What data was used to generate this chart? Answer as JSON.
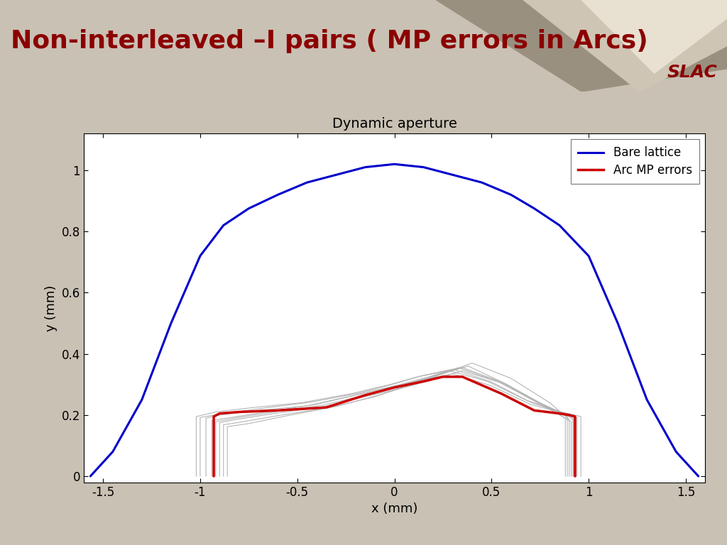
{
  "chart_title": "Dynamic aperture",
  "xlabel": "x (mm)",
  "ylabel": "y (mm)",
  "xlim": [
    -1.6,
    1.6
  ],
  "ylim": [
    -0.02,
    1.12
  ],
  "xticks": [
    -1.5,
    -1.0,
    -0.5,
    0.0,
    0.5,
    1.0,
    1.5
  ],
  "yticks": [
    0,
    0.2,
    0.4,
    0.6,
    0.8,
    1.0
  ],
  "background_color": "#c9c1b4",
  "plot_bg_color": "#ffffff",
  "slide_title": "Non-interleaved –I pairs ( MP errors in Arcs)",
  "title_color": "#8b0000",
  "title_fontsize": 26,
  "slac_text": "SLAC",
  "blue_curve": {
    "x": [
      -1.565,
      -1.45,
      -1.3,
      -1.15,
      -1.0,
      -0.88,
      -0.75,
      -0.6,
      -0.45,
      -0.3,
      -0.15,
      0.0,
      0.15,
      0.3,
      0.45,
      0.6,
      0.72,
      0.85,
      1.0,
      1.15,
      1.3,
      1.45,
      1.565
    ],
    "y": [
      0.0,
      0.08,
      0.25,
      0.5,
      0.72,
      0.82,
      0.875,
      0.92,
      0.96,
      0.985,
      1.01,
      1.02,
      1.01,
      0.985,
      0.96,
      0.92,
      0.875,
      0.82,
      0.72,
      0.5,
      0.25,
      0.08,
      0.0
    ],
    "color": "#0000cc",
    "linewidth": 2.2,
    "label": "Bare lattice"
  },
  "red_curve": {
    "x": [
      -0.93,
      -0.93,
      -0.9,
      -0.8,
      -0.6,
      -0.35,
      -0.15,
      0.0,
      0.15,
      0.25,
      0.35,
      0.55,
      0.72,
      0.85,
      0.9,
      0.93,
      0.93
    ],
    "y": [
      0.0,
      0.195,
      0.205,
      0.21,
      0.215,
      0.225,
      0.265,
      0.29,
      0.31,
      0.325,
      0.325,
      0.27,
      0.215,
      0.205,
      0.2,
      0.195,
      0.0
    ],
    "color": "#cc0000",
    "linewidth": 2.5,
    "label": "Arc MP errors"
  },
  "gray_curves": [
    {
      "x": [
        -0.97,
        -0.97,
        -0.9,
        -0.7,
        -0.45,
        -0.2,
        0.0,
        0.15,
        0.3,
        0.5,
        0.7,
        0.88,
        0.92,
        0.92
      ],
      "y": [
        0.0,
        0.19,
        0.2,
        0.215,
        0.23,
        0.265,
        0.295,
        0.315,
        0.335,
        0.295,
        0.235,
        0.205,
        0.19,
        0.0
      ]
    },
    {
      "x": [
        -0.9,
        -0.9,
        -0.82,
        -0.62,
        -0.38,
        -0.15,
        0.05,
        0.2,
        0.35,
        0.55,
        0.75,
        0.88,
        0.88
      ],
      "y": [
        0.0,
        0.175,
        0.185,
        0.205,
        0.225,
        0.26,
        0.29,
        0.315,
        0.345,
        0.305,
        0.235,
        0.19,
        0.0
      ]
    },
    {
      "x": [
        -0.88,
        -0.88,
        -0.78,
        -0.58,
        -0.33,
        -0.1,
        0.08,
        0.22,
        0.38,
        0.58,
        0.78,
        0.91,
        0.91
      ],
      "y": [
        0.0,
        0.168,
        0.178,
        0.2,
        0.225,
        0.26,
        0.3,
        0.33,
        0.36,
        0.3,
        0.228,
        0.178,
        0.0
      ]
    },
    {
      "x": [
        -1.02,
        -1.02,
        -0.92,
        -0.72,
        -0.48,
        -0.22,
        -0.02,
        0.12,
        0.28,
        0.48,
        0.68,
        0.86,
        0.96,
        0.96
      ],
      "y": [
        0.0,
        0.195,
        0.21,
        0.225,
        0.24,
        0.27,
        0.3,
        0.325,
        0.345,
        0.31,
        0.248,
        0.21,
        0.195,
        0.0
      ]
    },
    {
      "x": [
        -0.86,
        -0.86,
        -0.75,
        -0.55,
        -0.3,
        -0.08,
        0.1,
        0.25,
        0.4,
        0.6,
        0.8,
        0.9,
        0.9
      ],
      "y": [
        0.0,
        0.162,
        0.172,
        0.198,
        0.228,
        0.265,
        0.3,
        0.335,
        0.37,
        0.32,
        0.24,
        0.185,
        0.0
      ]
    },
    {
      "x": [
        -0.94,
        -0.94,
        -0.84,
        -0.64,
        -0.4,
        -0.18,
        0.02,
        0.18,
        0.33,
        0.53,
        0.73,
        0.88,
        0.92,
        0.92
      ],
      "y": [
        0.0,
        0.182,
        0.192,
        0.212,
        0.235,
        0.268,
        0.298,
        0.325,
        0.355,
        0.31,
        0.245,
        0.202,
        0.185,
        0.0
      ]
    },
    {
      "x": [
        -1.0,
        -1.0,
        -0.88,
        -0.68,
        -0.43,
        -0.18,
        0.0,
        0.14,
        0.3,
        0.5,
        0.7,
        0.86,
        0.94,
        0.94
      ],
      "y": [
        0.0,
        0.192,
        0.205,
        0.222,
        0.242,
        0.272,
        0.302,
        0.328,
        0.35,
        0.308,
        0.242,
        0.208,
        0.192,
        0.0
      ]
    },
    {
      "x": [
        -0.92,
        -0.92,
        -0.82,
        -0.62,
        -0.37,
        -0.13,
        0.05,
        0.2,
        0.35,
        0.55,
        0.75,
        0.89,
        0.89
      ],
      "y": [
        0.0,
        0.178,
        0.19,
        0.21,
        0.232,
        0.268,
        0.298,
        0.328,
        0.355,
        0.308,
        0.24,
        0.195,
        0.0
      ]
    }
  ],
  "legend_fontsize": 12,
  "axis_fontsize": 13,
  "tick_fontsize": 12
}
